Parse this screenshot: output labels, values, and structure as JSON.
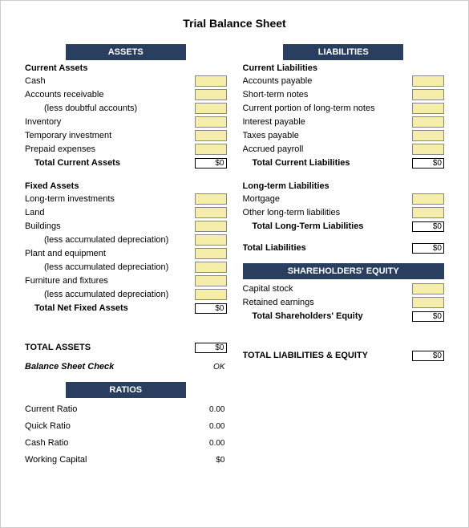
{
  "title": "Trial Balance Sheet",
  "colors": {
    "header_bg": "#2a3f5f",
    "header_fg": "#ffffff",
    "input_bg": "#f5eeaa",
    "border": "#888888"
  },
  "assets": {
    "header": "ASSETS",
    "current": {
      "title": "Current Assets",
      "items": [
        {
          "label": "Cash",
          "input": true
        },
        {
          "label": "Accounts receivable",
          "input": true
        },
        {
          "label": "(less doubtful accounts)",
          "indent": true,
          "input": true
        },
        {
          "label": "Inventory",
          "input": true
        },
        {
          "label": "Temporary investment",
          "input": true
        },
        {
          "label": "Prepaid expenses",
          "input": true
        }
      ],
      "total_label": "Total Current Assets",
      "total_value": "$0"
    },
    "fixed": {
      "title": "Fixed Assets",
      "items": [
        {
          "label": "Long-term investments",
          "input": true
        },
        {
          "label": "Land",
          "input": true
        },
        {
          "label": "Buildings",
          "input": true
        },
        {
          "label": "(less accumulated depreciation)",
          "indent": true,
          "input": true
        },
        {
          "label": "Plant and equipment",
          "input": true
        },
        {
          "label": "(less accumulated depreciation)",
          "indent": true,
          "input": true
        },
        {
          "label": "Furniture and fixtures",
          "input": true
        },
        {
          "label": "(less accumulated depreciation)",
          "indent": true,
          "input": true
        }
      ],
      "total_label": "Total Net Fixed Assets",
      "total_value": "$0"
    },
    "grand_label": "TOTAL ASSETS",
    "grand_value": "$0",
    "check_label": "Balance Sheet Check",
    "check_value": "OK"
  },
  "liabilities": {
    "header": "LIABILITIES",
    "current": {
      "title": "Current Liabilities",
      "items": [
        {
          "label": "Accounts payable",
          "input": true
        },
        {
          "label": "Short-term notes",
          "input": true
        },
        {
          "label": "Current portion of long-term notes",
          "input": true
        },
        {
          "label": "Interest payable",
          "input": true
        },
        {
          "label": "Taxes payable",
          "input": true
        },
        {
          "label": "Accrued payroll",
          "input": true
        }
      ],
      "total_label": "Total Current Liabilities",
      "total_value": "$0"
    },
    "longterm": {
      "title": "Long-term Liabilities",
      "items": [
        {
          "label": "Mortgage",
          "input": true
        },
        {
          "label": "Other long-term liabilities",
          "input": true
        }
      ],
      "total_label": "Total Long-Term Liabilities",
      "total_value": "$0"
    },
    "total_label": "Total Liabilities",
    "total_value": "$0"
  },
  "equity": {
    "header": "SHAREHOLDERS' EQUITY",
    "items": [
      {
        "label": "Capital stock",
        "input": true
      },
      {
        "label": "Retained earnings",
        "input": true
      }
    ],
    "total_label": "Total Shareholders' Equity",
    "total_value": "$0",
    "grand_label": "TOTAL LIABILITIES & EQUITY",
    "grand_value": "$0"
  },
  "ratios": {
    "header": "RATIOS",
    "items": [
      {
        "label": "Current Ratio",
        "value": "0.00"
      },
      {
        "label": "Quick Ratio",
        "value": "0.00"
      },
      {
        "label": "Cash Ratio",
        "value": "0.00"
      },
      {
        "label": "Working Capital",
        "value": "$0"
      }
    ]
  }
}
